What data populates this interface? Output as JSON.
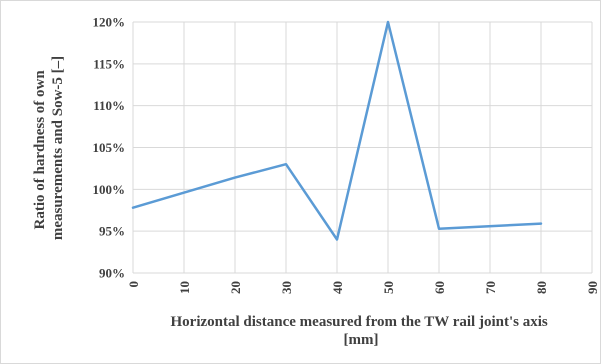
{
  "chart_data": {
    "type": "line",
    "title": "",
    "xlabel_lines": [
      "Horizontal distance measured from the TW rail joint's axis",
      "[mm]"
    ],
    "ylabel_lines": [
      "Ratio of hardness of own",
      "measurements  and Sow-5 [–]"
    ],
    "x_ticks": [
      "0",
      "10",
      "20",
      "30",
      "40",
      "50",
      "60",
      "70",
      "80",
      "90"
    ],
    "y_ticks": [
      "90%",
      "95%",
      "100%",
      "105%",
      "110%",
      "115%",
      "120%"
    ],
    "xlim": [
      0,
      90
    ],
    "ylim": [
      90,
      120
    ],
    "grid": true,
    "legend": "none",
    "series": [
      {
        "x": [
          0,
          20,
          30,
          40,
          50,
          60,
          80
        ],
        "y": [
          97.8,
          101.4,
          103.0,
          94.0,
          120.0,
          95.3,
          95.9
        ],
        "color": "#5b9bd5"
      }
    ]
  }
}
